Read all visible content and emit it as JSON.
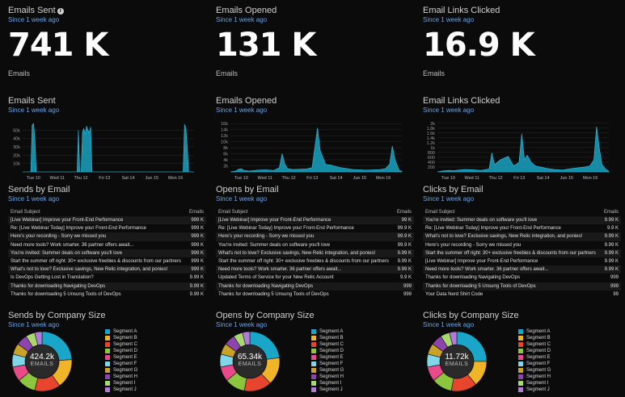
{
  "accent": "#1aa1bf",
  "kpis": [
    {
      "title": "Emails Sent",
      "subtitle": "Since 1 week ago",
      "value": "741 K",
      "label": "Emails"
    },
    {
      "title": "Emails Opened",
      "subtitle": "Since 1 week ago",
      "value": "131 K",
      "label": "Emails"
    },
    {
      "title": "Email Links Clicked",
      "subtitle": "Since 1 week ago",
      "value": "16.9 K",
      "label": "Emails"
    }
  ],
  "chart_data": [
    {
      "type": "area",
      "title": "Emails Sent",
      "subtitle": "Since 1 week ago",
      "x_ticks": [
        "Tue 10",
        "Wed 11",
        "Thu 12",
        "Fri 13",
        "Sat 14",
        "Jun 15",
        "Mon 16"
      ],
      "y_ticks": [
        "10k",
        "20k",
        "30k",
        "40k",
        "50k"
      ],
      "ylim": [
        0,
        60000
      ],
      "series": [
        {
          "x": [
            0,
            0.3,
            0.35,
            0.4,
            0.45,
            0.5,
            0.6,
            1.0,
            1.5,
            2.0,
            2.05,
            2.1,
            2.15,
            2.2,
            2.25,
            2.3,
            2.35,
            2.4,
            2.45,
            2.5,
            2.55,
            2.6,
            2.65,
            2.7,
            3.0,
            4.0,
            5.0,
            5.9,
            5.95,
            6.0,
            6.05,
            6.1,
            6.3
          ],
          "y": [
            0,
            0,
            56000,
            58000,
            40000,
            0,
            0,
            0,
            0,
            0,
            50000,
            0,
            0,
            48000,
            52000,
            45000,
            55000,
            50000,
            47000,
            54000,
            0,
            0,
            0,
            0,
            0,
            0,
            0,
            0,
            57000,
            52000,
            30000,
            0,
            0
          ]
        }
      ]
    },
    {
      "type": "area",
      "title": "Emails Opened",
      "subtitle": "Since 1 week ago",
      "x_ticks": [
        "Tue 10",
        "Wed 11",
        "Thu 12",
        "Fri 13",
        "Sat 14",
        "Jun 15",
        "Mon 16"
      ],
      "y_ticks": [
        "2k",
        "4k",
        "6k",
        "8k",
        "10k",
        "12k",
        "14k",
        "16k"
      ],
      "ylim": [
        0,
        16500
      ],
      "series": [
        {
          "x": [
            0,
            0.2,
            0.3,
            0.4,
            0.5,
            0.7,
            1.0,
            1.3,
            1.6,
            1.8,
            1.9,
            2.0,
            2.1,
            2.3,
            2.5,
            2.8,
            3.0,
            3.2,
            3.3,
            3.5,
            3.7,
            4.0,
            4.5,
            5.0,
            5.5,
            5.7,
            5.85,
            5.95,
            6.05,
            6.2,
            6.3
          ],
          "y": [
            0,
            300,
            900,
            1000,
            500,
            300,
            600,
            700,
            500,
            1400,
            6000,
            2500,
            1100,
            800,
            900,
            1000,
            1400,
            14500,
            7000,
            2500,
            2200,
            1500,
            800,
            600,
            800,
            1100,
            2500,
            8500,
            4000,
            500,
            200
          ]
        }
      ]
    },
    {
      "type": "area",
      "title": "Email Links Clicked",
      "subtitle": "Since 1 week ago",
      "x_ticks": [
        "Tue 10",
        "Wed 11",
        "Thu 12",
        "Fri 13",
        "Sat 14",
        "Jun 15",
        "Mon 16"
      ],
      "y_ticks": [
        "200",
        "400",
        "600",
        "800",
        "1k",
        "1.2k",
        "1.4k",
        "1.6k",
        "1.8k",
        "2k"
      ],
      "ylim": [
        0,
        2100
      ],
      "series": [
        {
          "x": [
            0,
            0.2,
            0.4,
            0.6,
            0.8,
            1.0,
            1.3,
            1.6,
            1.9,
            2.0,
            2.1,
            2.3,
            2.6,
            2.8,
            3.0,
            3.1,
            3.2,
            3.3,
            3.45,
            3.6,
            3.8,
            4.0,
            4.3,
            4.6,
            5.0,
            5.4,
            5.6,
            5.75,
            5.85,
            5.95,
            6.05,
            6.2,
            6.3
          ],
          "y": [
            0,
            40,
            60,
            50,
            80,
            100,
            90,
            60,
            120,
            800,
            300,
            500,
            650,
            250,
            400,
            1600,
            500,
            700,
            400,
            250,
            200,
            150,
            100,
            80,
            150,
            200,
            250,
            500,
            1900,
            1000,
            300,
            100,
            30
          ]
        }
      ]
    }
  ],
  "tables": [
    {
      "title": "Sends by Email",
      "subtitle": "Since 1 week ago",
      "col_subject": "Email Subject",
      "col_count": "Emails",
      "rows": [
        {
          "subject": "[Live Webinar] Improve your Front-End Performance",
          "count": "999 K"
        },
        {
          "subject": "Re: [Live Webinar Today] Improve your Front-End Performance",
          "count": "999 K"
        },
        {
          "subject": "Here's your recording - Sorry we missed you",
          "count": "999 K"
        },
        {
          "subject": "Need more tools? Work smarter. 36 partner offers await...",
          "count": "999 K"
        },
        {
          "subject": "You're invited: Summer deals on software you'll love",
          "count": "999 K"
        },
        {
          "subject": "Start the summer off right: 30+ exclusive freebies & discounts from our partners",
          "count": "999 K"
        },
        {
          "subject": "What's not to love? Exclusive savings, New Relic integration, and ponies!",
          "count": "999 K"
        },
        {
          "subject": "Is DevOps Getting Lost in Translation?",
          "count": "9.99 K"
        },
        {
          "subject": "Thanks for downloading Navigating DevOps",
          "count": "9.99 K"
        },
        {
          "subject": "Thanks for downloading 5 Unsung Tools of DevOps",
          "count": "9.99 K"
        }
      ]
    },
    {
      "title": "Opens by Email",
      "subtitle": "Since 1 week ago",
      "col_subject": "Email Subject",
      "col_count": "Emails",
      "rows": [
        {
          "subject": "[Live Webinar] Improve your Front-End Performance",
          "count": "99 K"
        },
        {
          "subject": "Re: [Live Webinar Today] Improve your Front-End Performance",
          "count": "99.9 K"
        },
        {
          "subject": "Here's your recording - Sorry we missed you",
          "count": "99.9 K"
        },
        {
          "subject": "You're invited: Summer deals on software you'll love",
          "count": "99.9 K"
        },
        {
          "subject": "What's not to love? Exclusive savings, New Relic integration, and ponies!",
          "count": "9.99 K"
        },
        {
          "subject": "Start the summer off right: 30+ exclusive freebies & discounts from our partners",
          "count": "9.99 K"
        },
        {
          "subject": "Need more tools? Work smarter. 36 partner offers await...",
          "count": "9.99 K"
        },
        {
          "subject": "Updated Terms of Service for your New Relic Account",
          "count": "9.9 K"
        },
        {
          "subject": "Thanks for downloading Navigating DevOps",
          "count": "999"
        },
        {
          "subject": "Thanks for downloading 5 Unsung Tools of DevOps",
          "count": "999"
        }
      ]
    },
    {
      "title": "Clicks by Email",
      "subtitle": "Since 1 week ago",
      "col_subject": "Email Subject",
      "col_count": "Emails",
      "rows": [
        {
          "subject": "You're invited: Summer deals on software you'll love",
          "count": "9.99 K"
        },
        {
          "subject": "Re: [Live Webinar Today] Improve your Front-End Performance",
          "count": "9.9 K"
        },
        {
          "subject": "What's not to love? Exclusive savings, New Relic integration, and ponies!",
          "count": "9.99 K"
        },
        {
          "subject": "Here's your recording - Sorry we missed you",
          "count": "9.99 K"
        },
        {
          "subject": "Start the summer off right: 30+ exclusive freebies & discounts from our partners",
          "count": "9.99 K"
        },
        {
          "subject": "[Live Webinar] Improve your Front-End Performance",
          "count": "9.99 K"
        },
        {
          "subject": "Need more tools? Work smarter. 36 partner offers await...",
          "count": "9.99 K"
        },
        {
          "subject": "Thanks for downloading Navigating DevOps",
          "count": "999"
        },
        {
          "subject": "Thanks for downloading 5 Unsung Tools of DevOps",
          "count": "999"
        },
        {
          "subject": "Your Data Nerd Shirt Code",
          "count": "99"
        }
      ]
    }
  ],
  "donuts": [
    {
      "title": "Sends by Company Size",
      "subtitle": "Since 1 week ago",
      "center_value": "424.2k",
      "center_label": "EMAILS",
      "segments": [
        {
          "name": "Segment A",
          "value": 24,
          "color": "#1aa6c9"
        },
        {
          "name": "Segment B",
          "value": 16,
          "color": "#f0b428"
        },
        {
          "name": "Segment C",
          "value": 14,
          "color": "#e8452f"
        },
        {
          "name": "Segment D",
          "value": 10,
          "color": "#8cc63f"
        },
        {
          "name": "Segment E",
          "value": 8,
          "color": "#e94b8a"
        },
        {
          "name": "Segment F",
          "value": 7,
          "color": "#7fd6e8"
        },
        {
          "name": "Segment G",
          "value": 6,
          "color": "#c9a227"
        },
        {
          "name": "Segment H",
          "value": 6,
          "color": "#8e44ad"
        },
        {
          "name": "Segment I",
          "value": 5,
          "color": "#a8d86e"
        },
        {
          "name": "Segment J",
          "value": 4,
          "color": "#b07cd8"
        }
      ]
    },
    {
      "title": "Opens by Company Size",
      "subtitle": "Since 1 week ago",
      "center_value": "65.34k",
      "center_label": "EMAILS",
      "segments": [
        {
          "name": "Segment A",
          "value": 23,
          "color": "#1aa6c9"
        },
        {
          "name": "Segment B",
          "value": 15,
          "color": "#f0b428"
        },
        {
          "name": "Segment C",
          "value": 15,
          "color": "#e8452f"
        },
        {
          "name": "Segment D",
          "value": 11,
          "color": "#8cc63f"
        },
        {
          "name": "Segment E",
          "value": 8,
          "color": "#e94b8a"
        },
        {
          "name": "Segment F",
          "value": 7,
          "color": "#7fd6e8"
        },
        {
          "name": "Segment G",
          "value": 6,
          "color": "#c9a227"
        },
        {
          "name": "Segment H",
          "value": 6,
          "color": "#8e44ad"
        },
        {
          "name": "Segment I",
          "value": 5,
          "color": "#a8d86e"
        },
        {
          "name": "Segment J",
          "value": 4,
          "color": "#b07cd8"
        }
      ]
    },
    {
      "title": "Clicks by Company Size",
      "subtitle": "Since 1 week ago",
      "center_value": "11.72k",
      "center_label": "EMAILS",
      "segments": [
        {
          "name": "Segment A",
          "value": 25,
          "color": "#1aa6c9"
        },
        {
          "name": "Segment B",
          "value": 14,
          "color": "#f0b428"
        },
        {
          "name": "Segment C",
          "value": 14,
          "color": "#e8452f"
        },
        {
          "name": "Segment D",
          "value": 11,
          "color": "#8cc63f"
        },
        {
          "name": "Segment E",
          "value": 8,
          "color": "#e94b8a"
        },
        {
          "name": "Segment F",
          "value": 7,
          "color": "#7fd6e8"
        },
        {
          "name": "Segment G",
          "value": 6,
          "color": "#c9a227"
        },
        {
          "name": "Segment H",
          "value": 6,
          "color": "#8e44ad"
        },
        {
          "name": "Segment I",
          "value": 5,
          "color": "#a8d86e"
        },
        {
          "name": "Segment J",
          "value": 4,
          "color": "#b07cd8"
        }
      ]
    }
  ]
}
